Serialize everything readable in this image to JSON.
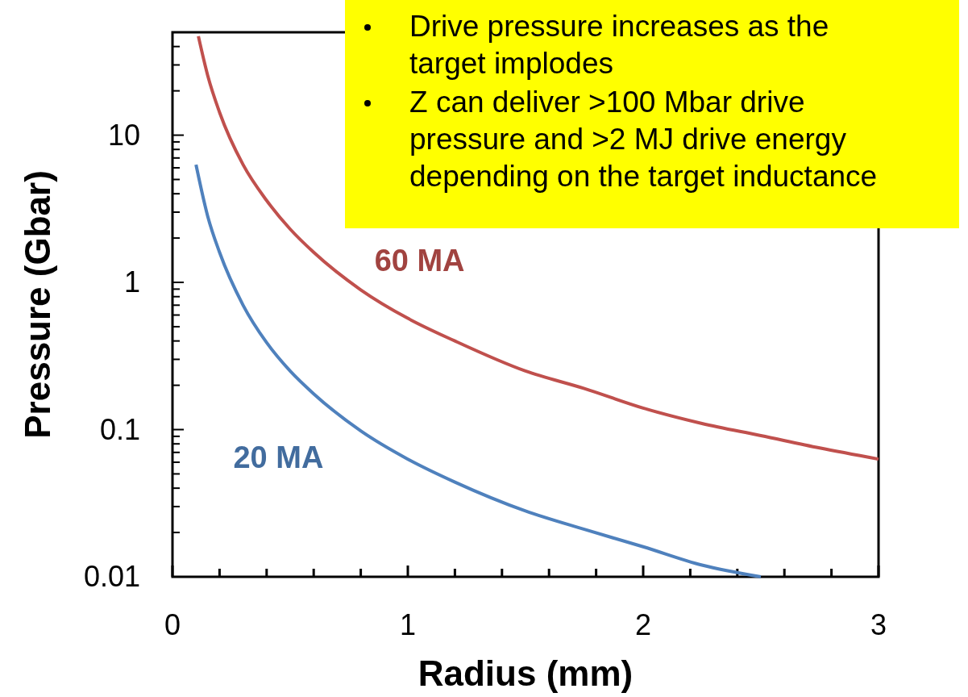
{
  "chart_data": {
    "type": "line",
    "xlabel": "Radius (mm)",
    "ylabel": "Pressure (Gbar)",
    "log": "y",
    "xlim": [
      0,
      3
    ],
    "ylim": [
      0.01,
      50
    ],
    "xticks": [
      0,
      {
        "value": 0.2,
        "label": null
      },
      {
        "value": 0.4,
        "label": null
      },
      {
        "value": 0.6,
        "label": null
      },
      {
        "value": 0.8,
        "label": null
      },
      1,
      {
        "value": 1.2,
        "label": null
      },
      {
        "value": 1.4,
        "label": null
      },
      {
        "value": 1.6,
        "label": null
      },
      {
        "value": 1.8,
        "label": null
      },
      2,
      {
        "value": 2.2,
        "label": null
      },
      {
        "value": 2.4,
        "label": null
      },
      {
        "value": 2.6,
        "label": null
      },
      {
        "value": 2.8,
        "label": null
      },
      3
    ],
    "yticks": [
      0.01,
      {
        "value": 0.02,
        "label": null
      },
      {
        "value": 0.03,
        "label": null
      },
      {
        "value": 0.04,
        "label": null
      },
      {
        "value": 0.05,
        "label": null
      },
      {
        "value": 0.06,
        "label": null
      },
      {
        "value": 0.07,
        "label": null
      },
      {
        "value": 0.08,
        "label": null
      },
      {
        "value": 0.09,
        "label": null
      },
      0.1,
      {
        "value": 0.2,
        "label": null
      },
      {
        "value": 0.3,
        "label": null
      },
      {
        "value": 0.4,
        "label": null
      },
      {
        "value": 0.5,
        "label": null
      },
      {
        "value": 0.6,
        "label": null
      },
      {
        "value": 0.7,
        "label": null
      },
      {
        "value": 0.8,
        "label": null
      },
      {
        "value": 0.9,
        "label": null
      },
      1,
      {
        "value": 2,
        "label": null
      },
      {
        "value": 3,
        "label": null
      },
      {
        "value": 4,
        "label": null
      },
      {
        "value": 5,
        "label": null
      },
      {
        "value": 6,
        "label": null
      },
      {
        "value": 7,
        "label": null
      },
      {
        "value": 8,
        "label": null
      },
      {
        "value": 9,
        "label": null
      },
      10,
      {
        "value": 20,
        "label": null
      },
      {
        "value": 30,
        "label": null
      },
      {
        "value": 40,
        "label": null
      }
    ],
    "grid": false,
    "marker": "none",
    "line_style": "solid",
    "series": [
      {
        "name": "60 MA",
        "color": "#c0504d",
        "x": [
          0.11,
          0.15,
          0.2,
          0.3,
          0.4,
          0.5,
          0.6,
          0.8,
          1,
          1.2,
          1.5,
          1.75,
          2,
          2.25,
          2.5,
          2.75,
          3
        ],
        "values": [
          47,
          25.3,
          14.3,
          6.3,
          3.6,
          2.3,
          1.6,
          0.89,
          0.57,
          0.4,
          0.25,
          0.19,
          0.14,
          0.11,
          0.091,
          0.075,
          0.063
        ]
      },
      {
        "name": "20 MA",
        "color": "#4f81bd",
        "x": [
          0.1,
          0.15,
          0.2,
          0.3,
          0.4,
          0.5,
          0.6,
          0.8,
          1,
          1.2,
          1.5,
          1.75,
          2,
          2.25,
          2.5
        ],
        "values": [
          6.3,
          2.8,
          1.6,
          0.7,
          0.39,
          0.25,
          0.175,
          0.098,
          0.063,
          0.044,
          0.028,
          0.021,
          0.016,
          0.012,
          0.01
        ]
      }
    ],
    "annotations": [
      "Drive pressure increases as the\ntarget implodes",
      "Z can deliver >100 Mbar drive\npressure and >2 MJ drive energy\ndepending on the target inductance"
    ]
  }
}
